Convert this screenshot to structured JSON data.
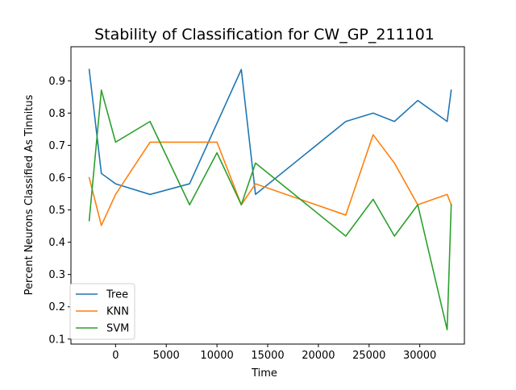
{
  "chart_data": {
    "type": "line",
    "title": "Stability of Classification for CW_GP_211101",
    "xlabel": "Time",
    "ylabel": "Percent Neurons Classified As Tinnitus",
    "xlim": [
      -4400,
      34400
    ],
    "ylim": [
      0.0845,
      1.0055
    ],
    "x_ticks": [
      0,
      5000,
      10000,
      15000,
      20000,
      25000,
      30000
    ],
    "x_tick_labels": [
      "0",
      "5000",
      "10000",
      "15000",
      "20000",
      "25000",
      "30000"
    ],
    "y_ticks": [
      0.1,
      0.2,
      0.3,
      0.4,
      0.5,
      0.6,
      0.7,
      0.8,
      0.9
    ],
    "y_tick_labels": [
      "0.1",
      "0.2",
      "0.3",
      "0.4",
      "0.5",
      "0.6",
      "0.7",
      "0.8",
      "0.9"
    ],
    "grid": false,
    "legend_position": "lower-left",
    "series": [
      {
        "name": "Tree",
        "color": "#1f77b4",
        "x": [
          -2600,
          -1400,
          0,
          3400,
          7300,
          12400,
          13800,
          22700,
          25400,
          27500,
          29800,
          32700,
          33100
        ],
        "y": [
          0.935,
          0.613,
          0.581,
          0.548,
          0.581,
          0.935,
          0.548,
          0.774,
          0.8,
          0.774,
          0.839,
          0.774,
          0.871
        ]
      },
      {
        "name": "KNN",
        "color": "#ff7f0e",
        "x": [
          -2600,
          -1400,
          0,
          3400,
          7300,
          10000,
          12400,
          13800,
          22700,
          25400,
          27500,
          29800,
          32700,
          33100
        ],
        "y": [
          0.6,
          0.452,
          0.548,
          0.71,
          0.71,
          0.71,
          0.516,
          0.581,
          0.484,
          0.733,
          0.645,
          0.516,
          0.548,
          0.516
        ]
      },
      {
        "name": "SVM",
        "color": "#2ca02c",
        "x": [
          -2600,
          -1400,
          0,
          3400,
          7300,
          10000,
          12400,
          13800,
          22700,
          25400,
          27500,
          29800,
          32700,
          33100
        ],
        "y": [
          0.467,
          0.871,
          0.71,
          0.774,
          0.516,
          0.677,
          0.516,
          0.645,
          0.419,
          0.533,
          0.419,
          0.516,
          0.129,
          0.516
        ]
      }
    ]
  }
}
